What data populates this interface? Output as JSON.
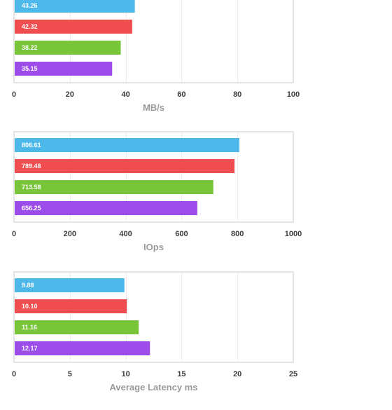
{
  "chart_data": [
    {
      "type": "bar",
      "orientation": "horizontal",
      "xlabel": "MB/s",
      "xlim": [
        0,
        100
      ],
      "ticks": [
        0,
        20,
        40,
        60,
        80,
        100
      ],
      "tick_labels": [
        "0",
        "20",
        "40",
        "60",
        "80",
        "100"
      ],
      "grid": true,
      "series": [
        {
          "value": 43.26,
          "label": "43.26",
          "color": "#4db8ea"
        },
        {
          "value": 42.32,
          "label": "42.32",
          "color": "#ef4d4f"
        },
        {
          "value": 38.22,
          "label": "38.22",
          "color": "#78c53a"
        },
        {
          "value": 35.15,
          "label": "35.15",
          "color": "#9b4ce9"
        }
      ]
    },
    {
      "type": "bar",
      "orientation": "horizontal",
      "xlabel": "IOps",
      "xlim": [
        0,
        1000
      ],
      "ticks": [
        0,
        200,
        400,
        600,
        800,
        1000
      ],
      "tick_labels": [
        "0",
        "200",
        "400",
        "600",
        "800",
        "1000"
      ],
      "grid": true,
      "series": [
        {
          "value": 806.61,
          "label": "806.61",
          "color": "#4db8ea"
        },
        {
          "value": 789.48,
          "label": "789.48",
          "color": "#ef4d4f"
        },
        {
          "value": 713.58,
          "label": "713.58",
          "color": "#78c53a"
        },
        {
          "value": 656.25,
          "label": "656.25",
          "color": "#9b4ce9"
        }
      ]
    },
    {
      "type": "bar",
      "orientation": "horizontal",
      "xlabel": "Average Latency ms",
      "xlim": [
        0,
        25
      ],
      "ticks": [
        0,
        5,
        10,
        15,
        20,
        25
      ],
      "tick_labels": [
        "0",
        "5",
        "10",
        "15",
        "20",
        "25"
      ],
      "grid": true,
      "series": [
        {
          "value": 9.88,
          "label": "9.88",
          "color": "#4db8ea"
        },
        {
          "value": 10.1,
          "label": "10.10",
          "color": "#ef4d4f"
        },
        {
          "value": 11.16,
          "label": "11.16",
          "color": "#78c53a"
        },
        {
          "value": 12.17,
          "label": "12.17",
          "color": "#9b4ce9"
        }
      ]
    }
  ]
}
